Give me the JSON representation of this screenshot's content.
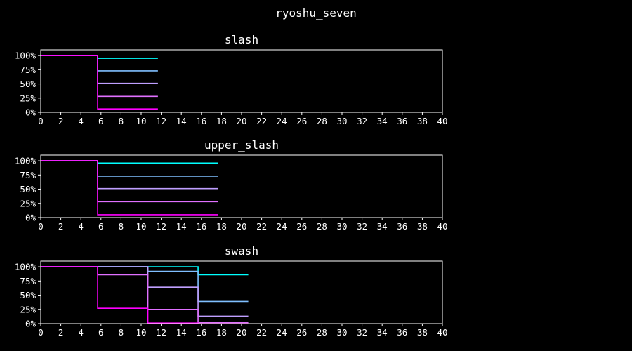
{
  "suptitle": "ryoshu_seven",
  "chart_data": [
    {
      "type": "line",
      "step": "post",
      "title": "slash",
      "xlim": [
        0,
        40
      ],
      "ylim": [
        0,
        1.1
      ],
      "xticks": [
        0,
        2,
        4,
        6,
        8,
        10,
        12,
        14,
        16,
        18,
        20,
        22,
        24,
        26,
        28,
        30,
        32,
        34,
        36,
        38,
        40
      ],
      "xtick_labels": [
        "0",
        "2",
        "4",
        "6",
        "8",
        "10",
        "12",
        "14",
        "16",
        "18",
        "20",
        "22",
        "24",
        "26",
        "28",
        "30",
        "32",
        "34",
        "36",
        "38",
        "40"
      ],
      "yticks": [
        0,
        0.25,
        0.5,
        0.75,
        1.0
      ],
      "ytick_labels": [
        "0%",
        "25%",
        "50%",
        "75%",
        "100%"
      ],
      "series": [
        {
          "color": "#00ffff",
          "x": [
            0,
            5.67,
            11.67
          ],
          "y": [
            1.0,
            0.95,
            0.95
          ]
        },
        {
          "color": "#80bfff",
          "x": [
            0,
            5.67,
            11.67
          ],
          "y": [
            1.0,
            0.73,
            0.73
          ]
        },
        {
          "color": "#bf9fff",
          "x": [
            0,
            5.67,
            11.67
          ],
          "y": [
            1.0,
            0.51,
            0.51
          ]
        },
        {
          "color": "#e070ff",
          "x": [
            0,
            5.67,
            11.67
          ],
          "y": [
            1.0,
            0.28,
            0.28
          ]
        },
        {
          "color": "#ff00ff",
          "x": [
            0,
            5.67,
            11.67
          ],
          "y": [
            1.0,
            0.06,
            0.06
          ]
        }
      ]
    },
    {
      "type": "line",
      "step": "post",
      "title": "upper_slash",
      "xlim": [
        0,
        40
      ],
      "ylim": [
        0,
        1.1
      ],
      "xticks": [
        0,
        2,
        4,
        6,
        8,
        10,
        12,
        14,
        16,
        18,
        20,
        22,
        24,
        26,
        28,
        30,
        32,
        34,
        36,
        38,
        40
      ],
      "xtick_labels": [
        "0",
        "2",
        "4",
        "6",
        "8",
        "10",
        "12",
        "14",
        "16",
        "18",
        "20",
        "22",
        "24",
        "26",
        "28",
        "30",
        "32",
        "34",
        "36",
        "38",
        "40"
      ],
      "yticks": [
        0,
        0.25,
        0.5,
        0.75,
        1.0
      ],
      "ytick_labels": [
        "0%",
        "25%",
        "50%",
        "75%",
        "100%"
      ],
      "series": [
        {
          "color": "#00ffff",
          "x": [
            0,
            5.67,
            17.67
          ],
          "y": [
            1.0,
            0.96,
            0.96
          ]
        },
        {
          "color": "#80bfff",
          "x": [
            0,
            5.67,
            17.67
          ],
          "y": [
            1.0,
            0.73,
            0.73
          ]
        },
        {
          "color": "#bf9fff",
          "x": [
            0,
            5.67,
            17.67
          ],
          "y": [
            1.0,
            0.51,
            0.51
          ]
        },
        {
          "color": "#e070ff",
          "x": [
            0,
            5.67,
            17.67
          ],
          "y": [
            1.0,
            0.28,
            0.28
          ]
        },
        {
          "color": "#ff00ff",
          "x": [
            0,
            5.67,
            17.67
          ],
          "y": [
            1.0,
            0.05,
            0.05
          ]
        }
      ]
    },
    {
      "type": "line",
      "step": "post",
      "title": "swash",
      "xlim": [
        0,
        40
      ],
      "ylim": [
        0,
        1.1
      ],
      "xticks": [
        0,
        2,
        4,
        6,
        8,
        10,
        12,
        14,
        16,
        18,
        20,
        22,
        24,
        26,
        28,
        30,
        32,
        34,
        36,
        38,
        40
      ],
      "xtick_labels": [
        "0",
        "2",
        "4",
        "6",
        "8",
        "10",
        "12",
        "14",
        "16",
        "18",
        "20",
        "22",
        "24",
        "26",
        "28",
        "30",
        "32",
        "34",
        "36",
        "38",
        "40"
      ],
      "yticks": [
        0,
        0.25,
        0.5,
        0.75,
        1.0
      ],
      "ytick_labels": [
        "0%",
        "25%",
        "50%",
        "75%",
        "100%"
      ],
      "series": [
        {
          "color": "#00ffff",
          "x": [
            0,
            5.67,
            10.67,
            15.67,
            20.67
          ],
          "y": [
            1.0,
            1.0,
            1.0,
            0.86,
            0.86
          ]
        },
        {
          "color": "#80bfff",
          "x": [
            0,
            5.67,
            10.67,
            15.67,
            20.67
          ],
          "y": [
            1.0,
            1.0,
            0.92,
            0.39,
            0.39
          ]
        },
        {
          "color": "#bf9fff",
          "x": [
            0,
            5.67,
            10.67,
            15.67,
            20.67
          ],
          "y": [
            1.0,
            1.0,
            0.64,
            0.13,
            0.13
          ]
        },
        {
          "color": "#e070ff",
          "x": [
            0,
            5.67,
            10.67,
            15.67,
            20.67
          ],
          "y": [
            1.0,
            0.86,
            0.25,
            0.02,
            0.02
          ]
        },
        {
          "color": "#ff00ff",
          "x": [
            0,
            5.67,
            10.67,
            15.67,
            20.67
          ],
          "y": [
            1.0,
            0.27,
            0.01,
            0.0,
            0.0
          ]
        }
      ]
    }
  ]
}
